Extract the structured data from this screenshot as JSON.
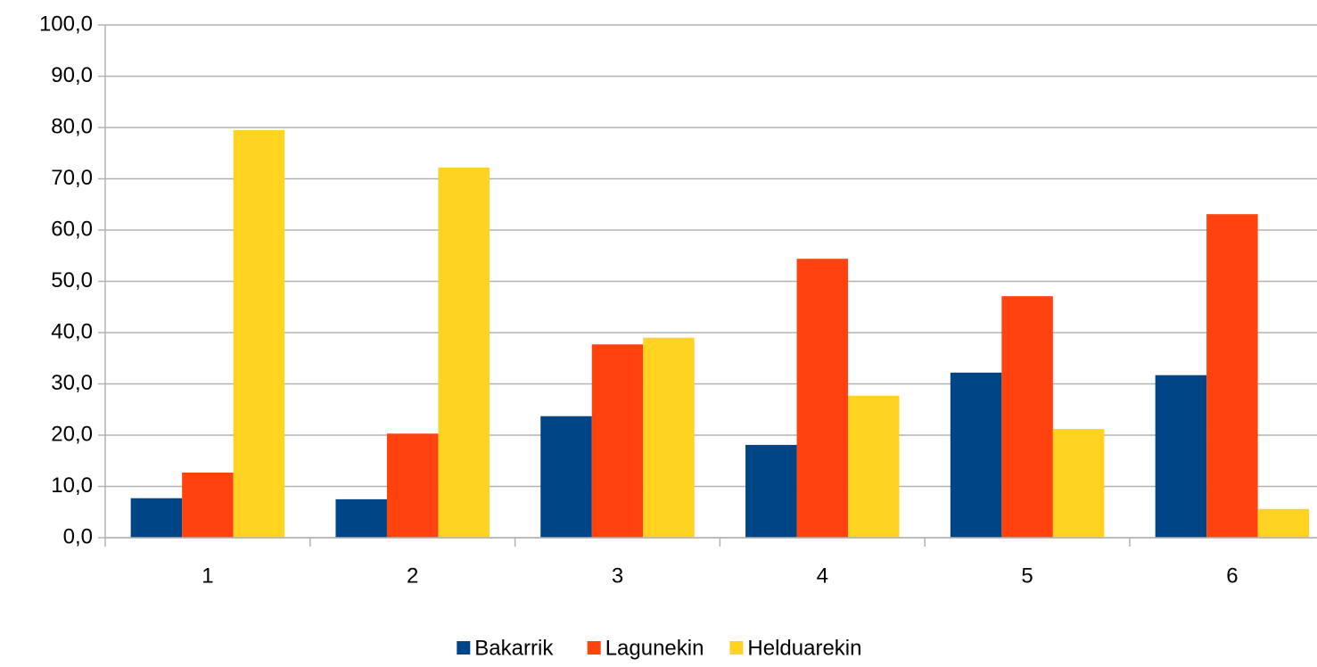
{
  "chart_data": {
    "type": "bar",
    "categories": [
      "1",
      "2",
      "3",
      "4",
      "5",
      "6"
    ],
    "series": [
      {
        "name": "Bakarrik",
        "color": "#004586",
        "values": [
          7.7,
          7.5,
          23.7,
          18.1,
          32.2,
          31.7
        ]
      },
      {
        "name": "Lagunekin",
        "color": "#ff420e",
        "values": [
          12.7,
          20.3,
          37.7,
          54.4,
          47.1,
          63.1
        ]
      },
      {
        "name": "Helduarekin",
        "color": "#ffd320",
        "values": [
          79.5,
          72.2,
          39.0,
          27.7,
          21.2,
          5.6
        ]
      }
    ],
    "ylim": [
      0,
      100
    ],
    "yticks": [
      {
        "value": 0,
        "label": "0,0"
      },
      {
        "value": 10,
        "label": "10,0"
      },
      {
        "value": 20,
        "label": "20,0"
      },
      {
        "value": 30,
        "label": "30,0"
      },
      {
        "value": 40,
        "label": "40,0"
      },
      {
        "value": 50,
        "label": "50,0"
      },
      {
        "value": 60,
        "label": "60,0"
      },
      {
        "value": 70,
        "label": "70,0"
      },
      {
        "value": 80,
        "label": "80,0"
      },
      {
        "value": 90,
        "label": "90,0"
      },
      {
        "value": 100,
        "label": "100,0"
      }
    ],
    "grid": true,
    "legend": "bottom"
  }
}
